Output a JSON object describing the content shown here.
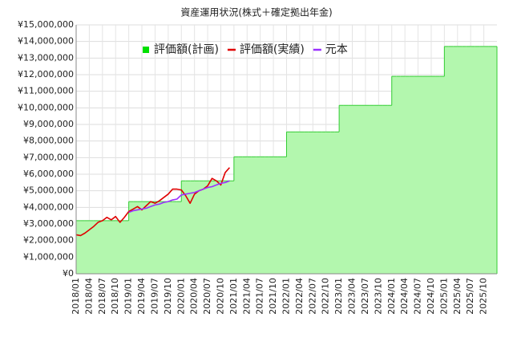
{
  "chart_data": {
    "type": "line",
    "title": "資産運用状況(株式＋確定拠出年金)",
    "categories": [
      "2018/01",
      null,
      null,
      "2018/04",
      null,
      null,
      "2018/07",
      null,
      null,
      "2018/10",
      null,
      null,
      "2019/01",
      null,
      null,
      "2019/04",
      null,
      null,
      "2019/07",
      null,
      null,
      "2019/10",
      null,
      null,
      "2020/01",
      null,
      null,
      "2020/04",
      null,
      null,
      "2020/07",
      null,
      null,
      "2020/10",
      null,
      null,
      "2021/01",
      null,
      null,
      "2021/04",
      null,
      null,
      "2021/07",
      null,
      null,
      "2021/10",
      null,
      null,
      "2022/01",
      null,
      null,
      "2022/04",
      null,
      null,
      "2022/07",
      null,
      null,
      "2022/10",
      null,
      null,
      "2023/01",
      null,
      null,
      "2023/04",
      null,
      null,
      "2023/07",
      null,
      null,
      "2023/10",
      null,
      null,
      "2024/01",
      null,
      null,
      "2024/04",
      null,
      null,
      "2024/07",
      null,
      null,
      "2024/10",
      null,
      null,
      "2025/01",
      null,
      null,
      "2025/04",
      null,
      null,
      "2025/07",
      null,
      null,
      "2025/10",
      null,
      null
    ],
    "series": [
      {
        "name": "評価額(計画)",
        "color": "#33cc33",
        "fill": "#b3f7ae",
        "legend_color": "#00e000",
        "style": "step-area",
        "values": [
          3200000,
          3200000,
          3200000,
          3200000,
          3200000,
          3200000,
          3200000,
          3200000,
          3200000,
          3200000,
          3200000,
          3200000,
          4350000,
          4350000,
          4350000,
          4350000,
          4350000,
          4350000,
          4350000,
          4350000,
          4350000,
          4350000,
          4350000,
          4350000,
          5600000,
          5600000,
          5600000,
          5600000,
          5600000,
          5600000,
          5600000,
          5600000,
          5600000,
          5600000,
          5600000,
          5600000,
          7050000,
          7050000,
          7050000,
          7050000,
          7050000,
          7050000,
          7050000,
          7050000,
          7050000,
          7050000,
          7050000,
          7050000,
          8550000,
          8550000,
          8550000,
          8550000,
          8550000,
          8550000,
          8550000,
          8550000,
          8550000,
          8550000,
          8550000,
          8550000,
          10150000,
          10150000,
          10150000,
          10150000,
          10150000,
          10150000,
          10150000,
          10150000,
          10150000,
          10150000,
          10150000,
          10150000,
          11900000,
          11900000,
          11900000,
          11900000,
          11900000,
          11900000,
          11900000,
          11900000,
          11900000,
          11900000,
          11900000,
          11900000,
          13700000,
          13700000,
          13700000,
          13700000,
          13700000,
          13700000,
          13700000,
          13700000,
          13700000,
          13700000,
          13700000,
          13700000
        ]
      },
      {
        "name": "評価額(実績)",
        "color": "#e00000",
        "style": "line",
        "values": [
          2350000,
          2300000,
          2450000,
          2650000,
          2850000,
          3100000,
          3200000,
          3400000,
          3250000,
          3450000,
          3100000,
          3400000,
          3750000,
          3900000,
          4050000,
          3850000,
          4100000,
          4350000,
          4250000,
          4400000,
          4600000,
          4800000,
          5100000,
          5100000,
          5050000,
          4700000,
          4250000,
          4800000,
          5000000,
          5100000,
          5300000,
          5750000,
          5600000,
          5350000,
          6100000,
          6400000,
          null,
          null,
          null,
          null,
          null,
          null,
          null,
          null,
          null,
          null,
          null,
          null,
          null,
          null,
          null,
          null,
          null,
          null,
          null,
          null,
          null,
          null,
          null,
          null,
          null,
          null,
          null,
          null,
          null,
          null,
          null,
          null,
          null,
          null,
          null,
          null,
          null,
          null,
          null,
          null,
          null,
          null,
          null,
          null,
          null,
          null,
          null,
          null,
          null,
          null,
          null,
          null,
          null,
          null,
          null,
          null,
          null,
          null,
          null,
          null
        ]
      },
      {
        "name": "元本",
        "color": "#9b30ff",
        "style": "line",
        "values": [
          null,
          null,
          null,
          null,
          null,
          null,
          null,
          null,
          null,
          null,
          null,
          null,
          3700000,
          3800000,
          3850000,
          3900000,
          3950000,
          4050000,
          4150000,
          4200000,
          4300000,
          4350000,
          4450000,
          4500000,
          4750000,
          4800000,
          4850000,
          4900000,
          5000000,
          5100000,
          5200000,
          5250000,
          5350000,
          5450000,
          5500000,
          5600000,
          null,
          null,
          null,
          null,
          null,
          null,
          null,
          null,
          null,
          null,
          null,
          null,
          null,
          null,
          null,
          null,
          null,
          null,
          null,
          null,
          null,
          null,
          null,
          null,
          null,
          null,
          null,
          null,
          null,
          null,
          null,
          null,
          null,
          null,
          null,
          null,
          null,
          null,
          null,
          null,
          null,
          null,
          null,
          null,
          null,
          null,
          null,
          null,
          null,
          null,
          null,
          null,
          null,
          null,
          null,
          null,
          null,
          null,
          null,
          null
        ]
      }
    ],
    "ylim": [
      0,
      15000000
    ],
    "yticks": [
      {
        "value": 0,
        "label": "¥0"
      },
      {
        "value": 1000000,
        "label": "¥1,000,000"
      },
      {
        "value": 2000000,
        "label": "¥2,000,000"
      },
      {
        "value": 3000000,
        "label": "¥3,000,000"
      },
      {
        "value": 4000000,
        "label": "¥4,000,000"
      },
      {
        "value": 5000000,
        "label": "¥5,000,000"
      },
      {
        "value": 6000000,
        "label": "¥6,000,000"
      },
      {
        "value": 7000000,
        "label": "¥7,000,000"
      },
      {
        "value": 8000000,
        "label": "¥8,000,000"
      },
      {
        "value": 9000000,
        "label": "¥9,000,000"
      },
      {
        "value": 10000000,
        "label": "¥10,000,000"
      },
      {
        "value": 11000000,
        "label": "¥11,000,000"
      },
      {
        "value": 12000000,
        "label": "¥12,000,000"
      },
      {
        "value": 13000000,
        "label": "¥13,000,000"
      },
      {
        "value": 14000000,
        "label": "¥14,000,000"
      },
      {
        "value": 15000000,
        "label": "¥15,000,000"
      }
    ],
    "grid": true,
    "legend": "top"
  }
}
